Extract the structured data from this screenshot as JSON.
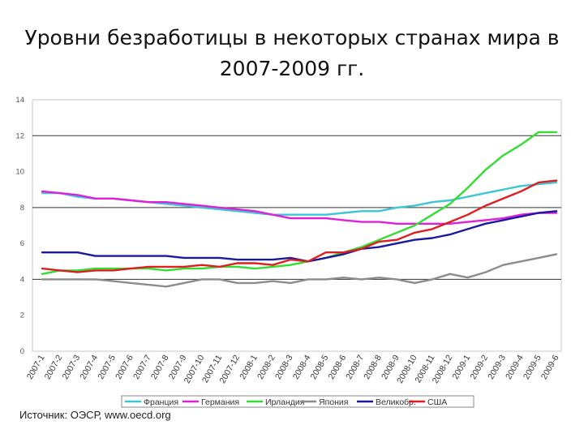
{
  "title": "Уровни безработицы в некоторых странах мира в 2007-2009 гг.",
  "source": "Источник: ОЭСР, www.oecd.org",
  "chart_data": {
    "type": "line",
    "title": "Уровни безработицы в некоторых странах мира в 2007-2009 гг.",
    "xlabel": "",
    "ylabel": "",
    "ylim": [
      0,
      14
    ],
    "yticks": [
      0,
      2,
      4,
      6,
      8,
      10,
      12,
      14
    ],
    "grid": "horizontal lines at 4, 8, 12",
    "legend": "bottom",
    "categories": [
      "2007-1",
      "2007-2",
      "2007-3",
      "2007-4",
      "2007-5",
      "2007-6",
      "2007-7",
      "2007-8",
      "2007-9",
      "2007-10",
      "2007-11",
      "2007-12",
      "2008-1",
      "2008-2",
      "2008-3",
      "2008-4",
      "2008-5",
      "2008-6",
      "2008-7",
      "2008-8",
      "2008-9",
      "2008-10",
      "2008-11",
      "2008-12",
      "2009-1",
      "2009-2",
      "2009-3",
      "2009-4",
      "2009-5",
      "2009-6"
    ],
    "series": [
      {
        "name": "Франция",
        "color": "#3ec6d6",
        "values": [
          8.8,
          8.8,
          8.6,
          8.5,
          8.5,
          8.4,
          8.3,
          8.2,
          8.1,
          8.0,
          7.9,
          7.8,
          7.7,
          7.6,
          7.6,
          7.6,
          7.6,
          7.7,
          7.8,
          7.8,
          8.0,
          8.1,
          8.3,
          8.4,
          8.6,
          8.8,
          9.0,
          9.2,
          9.3,
          9.4
        ]
      },
      {
        "name": "Германия",
        "color": "#e020d8",
        "values": [
          8.9,
          8.8,
          8.7,
          8.5,
          8.5,
          8.4,
          8.3,
          8.3,
          8.2,
          8.1,
          8.0,
          7.9,
          7.8,
          7.6,
          7.4,
          7.4,
          7.4,
          7.3,
          7.2,
          7.2,
          7.1,
          7.1,
          7.1,
          7.1,
          7.2,
          7.3,
          7.4,
          7.6,
          7.7,
          7.7
        ]
      },
      {
        "name": "Ирландия",
        "color": "#33dd33",
        "values": [
          4.3,
          4.5,
          4.5,
          4.6,
          4.6,
          4.6,
          4.6,
          4.5,
          4.6,
          4.6,
          4.7,
          4.7,
          4.6,
          4.7,
          4.8,
          5.0,
          5.2,
          5.5,
          5.8,
          6.2,
          6.6,
          7.0,
          7.6,
          8.2,
          9.1,
          10.1,
          10.9,
          11.5,
          12.2,
          12.2
        ]
      },
      {
        "name": "Япония",
        "color": "#8c8c8c",
        "values": [
          4.0,
          4.0,
          4.0,
          4.0,
          3.9,
          3.8,
          3.7,
          3.6,
          3.8,
          4.0,
          4.0,
          3.8,
          3.8,
          3.9,
          3.8,
          4.0,
          4.0,
          4.1,
          4.0,
          4.1,
          4.0,
          3.8,
          4.0,
          4.3,
          4.1,
          4.4,
          4.8,
          5.0,
          5.2,
          5.4
        ]
      },
      {
        "name": "Великобр.",
        "color": "#1a1aa0",
        "values": [
          5.5,
          5.5,
          5.5,
          5.3,
          5.3,
          5.3,
          5.3,
          5.3,
          5.2,
          5.2,
          5.2,
          5.1,
          5.1,
          5.1,
          5.2,
          5.0,
          5.2,
          5.4,
          5.7,
          5.8,
          6.0,
          6.2,
          6.3,
          6.5,
          6.8,
          7.1,
          7.3,
          7.5,
          7.7,
          7.8
        ]
      },
      {
        "name": "США",
        "color": "#dd1f1f",
        "values": [
          4.6,
          4.5,
          4.4,
          4.5,
          4.5,
          4.6,
          4.7,
          4.7,
          4.7,
          4.8,
          4.7,
          4.9,
          4.9,
          4.8,
          5.1,
          5.0,
          5.5,
          5.5,
          5.7,
          6.1,
          6.2,
          6.6,
          6.8,
          7.2,
          7.6,
          8.1,
          8.5,
          8.9,
          9.4,
          9.5
        ]
      }
    ]
  }
}
